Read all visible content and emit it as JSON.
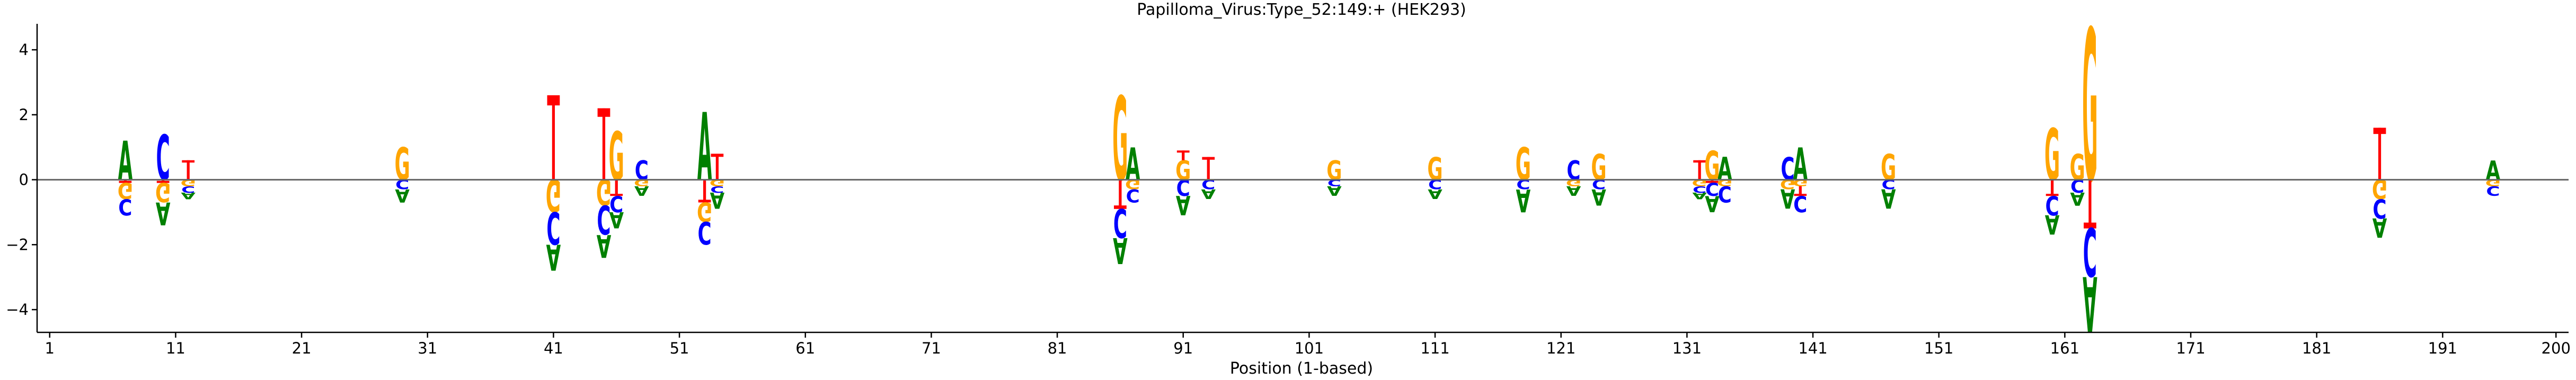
{
  "chart_data": {
    "type": "sequence-logo",
    "title": "Papilloma_Virus:Type_52:149:+  (HEK293)",
    "xlabel": "Position (1-based)",
    "ylabel": "",
    "xlim": [
      0,
      201
    ],
    "ylim": [
      -4.7,
      4.8
    ],
    "xticks": [
      1,
      11,
      21,
      31,
      41,
      51,
      61,
      71,
      81,
      91,
      101,
      111,
      121,
      131,
      141,
      151,
      161,
      171,
      181,
      191,
      200
    ],
    "yticks": [
      -4,
      -2,
      0,
      2,
      4
    ],
    "colors": {
      "A": "#008000",
      "C": "#0000ff",
      "G": "#ffa500",
      "T": "#ff0000"
    },
    "positions": [
      {
        "pos": 7,
        "up": [
          [
            "A",
            1.2
          ]
        ],
        "down": [
          [
            "T",
            0.1
          ],
          [
            "G",
            0.5
          ],
          [
            "C",
            0.5
          ]
        ]
      },
      {
        "pos": 10,
        "up": [
          [
            "C",
            1.4
          ]
        ],
        "down": [
          [
            "T",
            0.1
          ],
          [
            "G",
            0.6
          ],
          [
            "A",
            0.7
          ]
        ]
      },
      {
        "pos": 12,
        "up": [
          [
            "T",
            0.6
          ]
        ],
        "down": [
          [
            "G",
            0.2
          ],
          [
            "C",
            0.2
          ],
          [
            "A",
            0.2
          ]
        ]
      },
      {
        "pos": 29,
        "up": [
          [
            "G",
            1.0
          ]
        ],
        "down": [
          [
            "C",
            0.3
          ],
          [
            "A",
            0.4
          ]
        ]
      },
      {
        "pos": 41,
        "up": [
          [
            "T",
            2.6
          ]
        ],
        "down": [
          [
            "G",
            1.0
          ],
          [
            "C",
            1.0
          ],
          [
            "A",
            0.8
          ]
        ]
      },
      {
        "pos": 45,
        "up": [
          [
            "T",
            2.2
          ]
        ],
        "down": [
          [
            "G",
            0.8
          ],
          [
            "C",
            0.9
          ],
          [
            "A",
            0.7
          ]
        ]
      },
      {
        "pos": 46,
        "up": [
          [
            "G",
            1.5
          ]
        ],
        "down": [
          [
            "T",
            0.5
          ],
          [
            "C",
            0.5
          ],
          [
            "A",
            0.5
          ]
        ]
      },
      {
        "pos": 48,
        "up": [
          [
            "C",
            0.6
          ]
        ],
        "down": [
          [
            "G",
            0.2
          ],
          [
            "A",
            0.3
          ]
        ]
      },
      {
        "pos": 53,
        "up": [
          [
            "A",
            2.1
          ]
        ],
        "down": [
          [
            "T",
            0.7
          ],
          [
            "G",
            0.6
          ],
          [
            "C",
            0.7
          ]
        ]
      },
      {
        "pos": 54,
        "up": [
          [
            "T",
            0.8
          ]
        ],
        "down": [
          [
            "G",
            0.2
          ],
          [
            "C",
            0.2
          ],
          [
            "A",
            0.5
          ]
        ]
      },
      {
        "pos": 86,
        "up": [
          [
            "G",
            2.6
          ]
        ],
        "down": [
          [
            "T",
            0.9
          ],
          [
            "C",
            0.9
          ],
          [
            "A",
            0.8
          ]
        ]
      },
      {
        "pos": 87,
        "up": [
          [
            "A",
            1.0
          ]
        ],
        "down": [
          [
            "G",
            0.3
          ],
          [
            "C",
            0.4
          ]
        ]
      },
      {
        "pos": 91,
        "up": [
          [
            "G",
            0.6
          ],
          [
            "T",
            0.3
          ]
        ],
        "down": [
          [
            "C",
            0.5
          ],
          [
            "A",
            0.6
          ]
        ]
      },
      {
        "pos": 93,
        "up": [
          [
            "T",
            0.7
          ]
        ],
        "down": [
          [
            "C",
            0.3
          ],
          [
            "A",
            0.3
          ]
        ]
      },
      {
        "pos": 103,
        "up": [
          [
            "G",
            0.6
          ]
        ],
        "down": [
          [
            "C",
            0.2
          ],
          [
            "A",
            0.3
          ]
        ]
      },
      {
        "pos": 111,
        "up": [
          [
            "G",
            0.7
          ]
        ],
        "down": [
          [
            "C",
            0.3
          ],
          [
            "A",
            0.3
          ]
        ]
      },
      {
        "pos": 118,
        "up": [
          [
            "G",
            1.0
          ]
        ],
        "down": [
          [
            "C",
            0.3
          ],
          [
            "A",
            0.7
          ]
        ]
      },
      {
        "pos": 122,
        "up": [
          [
            "C",
            0.6
          ]
        ],
        "down": [
          [
            "G",
            0.2
          ],
          [
            "A",
            0.3
          ]
        ]
      },
      {
        "pos": 124,
        "up": [
          [
            "G",
            0.8
          ]
        ],
        "down": [
          [
            "C",
            0.3
          ],
          [
            "A",
            0.5
          ]
        ]
      },
      {
        "pos": 132,
        "up": [
          [
            "T",
            0.6
          ]
        ],
        "down": [
          [
            "G",
            0.2
          ],
          [
            "C",
            0.2
          ],
          [
            "A",
            0.2
          ]
        ]
      },
      {
        "pos": 133,
        "up": [
          [
            "G",
            0.9
          ]
        ],
        "down": [
          [
            "T",
            0.1
          ],
          [
            "C",
            0.4
          ],
          [
            "A",
            0.5
          ]
        ]
      },
      {
        "pos": 134,
        "up": [
          [
            "A",
            0.7
          ]
        ],
        "down": [
          [
            "G",
            0.2
          ],
          [
            "C",
            0.5
          ]
        ]
      },
      {
        "pos": 139,
        "up": [
          [
            "C",
            0.7
          ]
        ],
        "down": [
          [
            "G",
            0.3
          ],
          [
            "A",
            0.6
          ]
        ]
      },
      {
        "pos": 140,
        "up": [
          [
            "A",
            1.0
          ]
        ],
        "down": [
          [
            "G",
            0.2
          ],
          [
            "T",
            0.3
          ],
          [
            "C",
            0.5
          ]
        ]
      },
      {
        "pos": 147,
        "up": [
          [
            "G",
            0.8
          ]
        ],
        "down": [
          [
            "C",
            0.3
          ],
          [
            "A",
            0.6
          ]
        ]
      },
      {
        "pos": 160,
        "up": [
          [
            "G",
            1.6
          ]
        ],
        "down": [
          [
            "T",
            0.5
          ],
          [
            "C",
            0.6
          ],
          [
            "A",
            0.6
          ]
        ]
      },
      {
        "pos": 162,
        "up": [
          [
            "G",
            0.8
          ]
        ],
        "down": [
          [
            "C",
            0.4
          ],
          [
            "A",
            0.4
          ]
        ]
      },
      {
        "pos": 163,
        "up": [
          [
            "G",
            4.7
          ]
        ],
        "down": [
          [
            "T",
            1.5
          ],
          [
            "C",
            1.5
          ],
          [
            "A",
            1.7
          ]
        ]
      },
      {
        "pos": 186,
        "up": [
          [
            "T",
            1.6
          ]
        ],
        "down": [
          [
            "G",
            0.6
          ],
          [
            "C",
            0.6
          ],
          [
            "A",
            0.6
          ]
        ]
      },
      {
        "pos": 195,
        "up": [
          [
            "A",
            0.6
          ]
        ],
        "down": [
          [
            "G",
            0.2
          ],
          [
            "C",
            0.3
          ]
        ]
      }
    ]
  }
}
